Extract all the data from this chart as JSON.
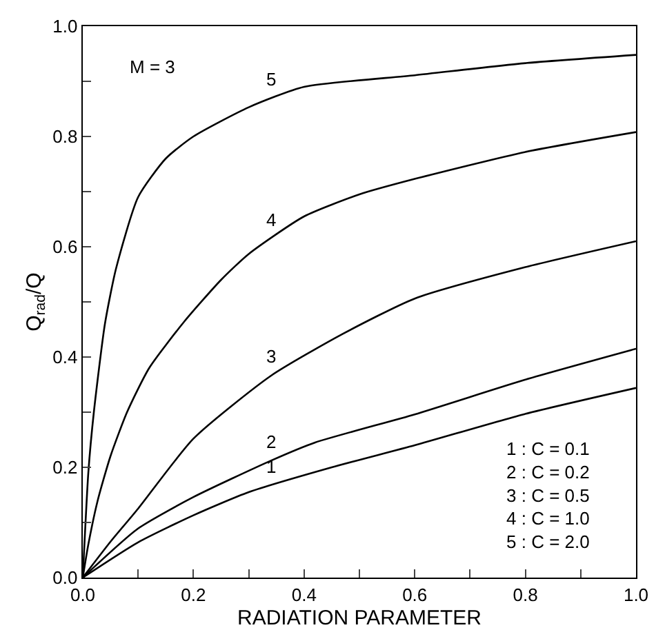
{
  "chart_data": {
    "type": "line",
    "xlabel": "RADIATION PARAMETER",
    "ylabel": "Q$_{rad}$/Q",
    "xlim": [
      0,
      1
    ],
    "ylim": [
      0,
      1
    ],
    "xticks": [
      {
        "value": 0,
        "label": "0.0"
      },
      {
        "value": 0.1,
        "label": null
      },
      {
        "value": 0.2,
        "label": "0.2"
      },
      {
        "value": 0.3,
        "label": null
      },
      {
        "value": 0.4,
        "label": "0.4"
      },
      {
        "value": 0.5,
        "label": null
      },
      {
        "value": 0.6,
        "label": "0.6"
      },
      {
        "value": 0.7,
        "label": null
      },
      {
        "value": 0.8,
        "label": "0.8"
      },
      {
        "value": 0.9,
        "label": null
      },
      {
        "value": 1,
        "label": "1.0"
      }
    ],
    "yticks": [
      {
        "value": 0,
        "label": "0.0"
      },
      {
        "value": 0.1,
        "label": null
      },
      {
        "value": 0.2,
        "label": "0.2"
      },
      {
        "value": 0.3,
        "label": null
      },
      {
        "value": 0.4,
        "label": "0.4"
      },
      {
        "value": 0.5,
        "label": null
      },
      {
        "value": 0.6,
        "label": "0.6"
      },
      {
        "value": 0.7,
        "label": null
      },
      {
        "value": 0.8,
        "label": "0.8"
      },
      {
        "value": 0.9,
        "label": null
      },
      {
        "value": 1,
        "label": "1.0"
      }
    ],
    "grid": false,
    "legend": false,
    "marker": "none",
    "line_style": "solid",
    "series": [
      {
        "name": "1",
        "color": "#000000",
        "x": [
          0,
          0.1,
          0.2,
          0.3,
          0.45,
          0.6,
          0.8,
          1
        ],
        "values": [
          0,
          0.064,
          0.113,
          0.155,
          0.2,
          0.24,
          0.297,
          0.344
        ]
      },
      {
        "name": "2",
        "color": "#000000",
        "x": [
          0,
          0.1,
          0.2,
          0.34,
          0.42,
          0.6,
          0.8,
          1
        ],
        "values": [
          0,
          0.089,
          0.146,
          0.212,
          0.245,
          0.296,
          0.359,
          0.415
        ]
      },
      {
        "name": "3",
        "color": "#000000",
        "x": [
          0,
          0.05,
          0.1,
          0.2,
          0.34,
          0.47,
          0.6,
          0.8,
          1
        ],
        "values": [
          0,
          0.065,
          0.125,
          0.252,
          0.366,
          0.442,
          0.506,
          0.563,
          0.61
        ]
      },
      {
        "name": "4",
        "color": "#000000",
        "x": [
          0,
          0.01,
          0.027,
          0.05,
          0.08,
          0.12,
          0.184,
          0.25,
          0.3,
          0.4,
          0.5,
          0.6,
          0.8,
          1
        ],
        "values": [
          0,
          0.06,
          0.14,
          0.22,
          0.3,
          0.38,
          0.465,
          0.54,
          0.587,
          0.655,
          0.695,
          0.723,
          0.772,
          0.808
        ]
      },
      {
        "name": "5",
        "color": "#000000",
        "x": [
          0,
          0.01,
          0.02,
          0.04,
          0.06,
          0.1,
          0.15,
          0.2,
          0.3,
          0.4,
          0.6,
          0.8,
          1
        ],
        "values": [
          0,
          0.19,
          0.3,
          0.46,
          0.56,
          0.69,
          0.76,
          0.8,
          0.853,
          0.89,
          0.911,
          0.933,
          0.948
        ]
      }
    ],
    "annotations": [
      "M = 3",
      "1 : C = 0.1\n2 : C = 0.2\n3 : C = 0.5\n4 : C = 1.0\n5 : C = 2.0"
    ]
  }
}
